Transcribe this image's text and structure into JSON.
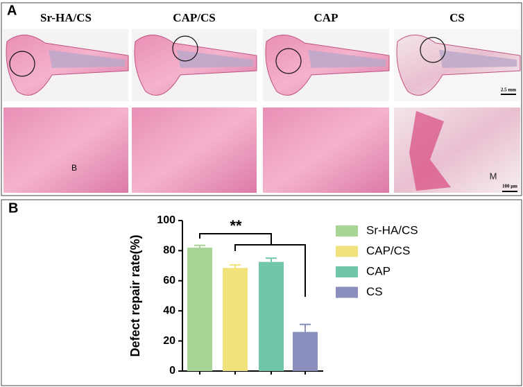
{
  "panel_a": {
    "label": "A",
    "columns": [
      "Sr-HA/CS",
      "CAP/CS",
      "CAP",
      "CS"
    ],
    "scale_bars": [
      "2.5 mm",
      "100 μm"
    ],
    "region_labels": [
      "B",
      "M"
    ]
  },
  "chart_data": {
    "type": "bar",
    "panel_label": "B",
    "ylabel": "Defect repair rate(%)",
    "categories": [
      "Sr-HA/CS",
      "CAP/CS",
      "CAP",
      "CS"
    ],
    "values": [
      82,
      68.5,
      72.5,
      26
    ],
    "errors": [
      1.5,
      2,
      2.5,
      5
    ],
    "colors": [
      "#a8d595",
      "#f2e27c",
      "#70c7a8",
      "#8a8fbd"
    ],
    "ylim": [
      0,
      100
    ],
    "yticks": [
      0,
      20,
      40,
      60,
      80,
      100
    ],
    "annotation": "**",
    "legend": true
  }
}
